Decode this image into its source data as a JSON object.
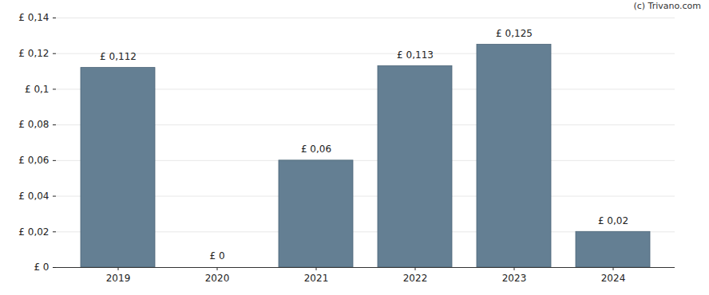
{
  "chart_data": {
    "type": "bar",
    "caption": "(c) Trivano.com",
    "categories": [
      "2019",
      "2020",
      "2021",
      "2022",
      "2023",
      "2024"
    ],
    "values": [
      0.112,
      0,
      0.06,
      0.113,
      0.125,
      0.02
    ],
    "value_labels": [
      "£ 0,112",
      "£ 0",
      "£ 0,06",
      "£ 0,113",
      "£ 0,125",
      "£ 0,02"
    ],
    "data_labels": true,
    "color": "#647f93",
    "ylim": [
      0,
      0.14
    ],
    "yticks": [
      {
        "value": 0,
        "label": "£ 0"
      },
      {
        "value": 0.02,
        "label": "£ 0,02"
      },
      {
        "value": 0.04,
        "label": "£ 0,04"
      },
      {
        "value": 0.06,
        "label": "£ 0,06"
      },
      {
        "value": 0.08,
        "label": "£ 0,08"
      },
      {
        "value": 0.1,
        "label": "£ 0,1"
      },
      {
        "value": 0.12,
        "label": "£ 0,12"
      },
      {
        "value": 0.14,
        "label": "£ 0,14"
      }
    ],
    "grid": true
  }
}
